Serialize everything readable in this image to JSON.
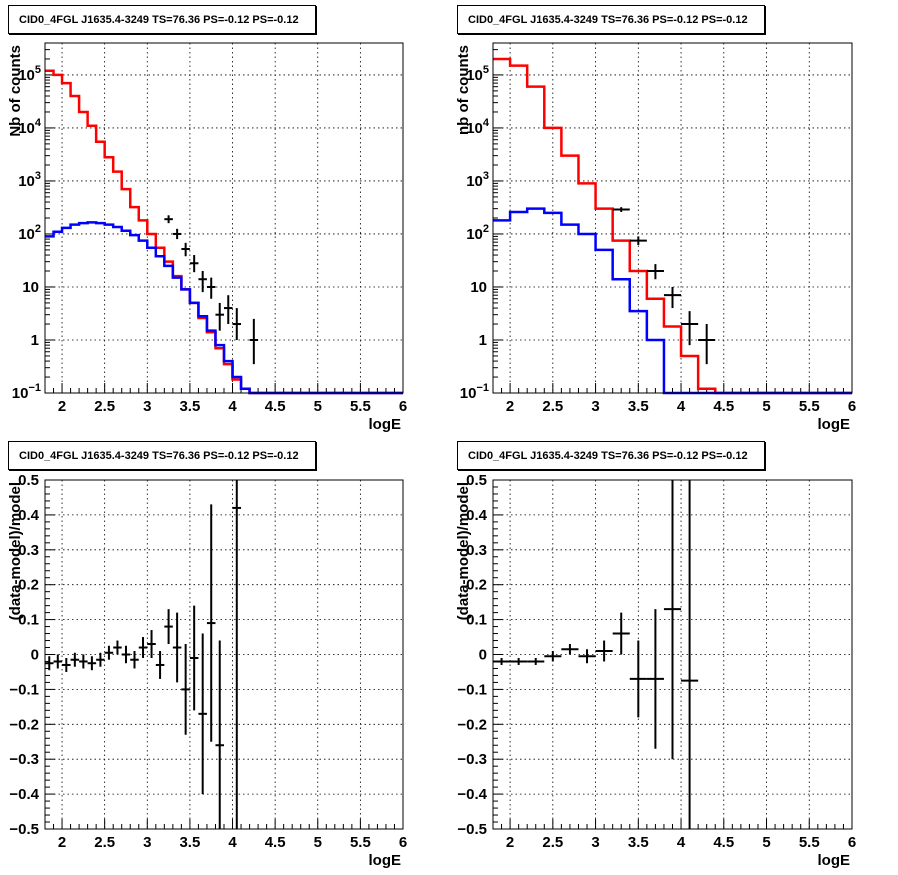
{
  "chart_data": [
    {
      "type": "line",
      "title": "CID0_4FGL J1635.4-3249 TS=76.36 PS=-0.12 PS=-0.12",
      "xlabel": "logE",
      "ylabel": "Nb of counts",
      "xlim": [
        1.8,
        6
      ],
      "ylim": [
        0.1,
        400000
      ],
      "yscale": "log",
      "grid": true,
      "x_ticks": [
        "2",
        "2.5",
        "3",
        "3.5",
        "4",
        "4.5",
        "5",
        "5.5",
        "6"
      ],
      "y_ticks": [
        {
          "v": 0.1,
          "label": "10",
          "exp": "−1"
        },
        {
          "v": 1,
          "label": "1",
          "exp": ""
        },
        {
          "v": 10,
          "label": "10",
          "exp": ""
        },
        {
          "v": 100,
          "label": "10",
          "exp": "2"
        },
        {
          "v": 1000,
          "label": "10",
          "exp": "3"
        },
        {
          "v": 10000,
          "label": "10",
          "exp": "4"
        },
        {
          "v": 100000,
          "label": "10",
          "exp": "5"
        }
      ],
      "bin_edges": [
        1.8,
        1.9,
        2.0,
        2.1,
        2.2,
        2.3,
        2.4,
        2.5,
        2.6,
        2.7,
        2.8,
        2.9,
        3.0,
        3.1,
        3.2,
        3.3,
        3.4,
        3.5,
        3.6,
        3.7,
        3.8,
        3.9,
        4.0,
        4.1,
        4.2,
        4.3,
        4.4,
        4.5,
        4.6,
        4.7,
        4.8,
        4.9,
        5.0,
        5.1,
        5.2,
        5.3,
        5.4,
        5.5,
        5.6,
        5.7,
        5.8,
        5.9,
        6.0
      ],
      "series": [
        {
          "color": "#ff0000",
          "values": [
            120000,
            100000,
            70000,
            40000,
            20000,
            11000,
            5500,
            2800,
            1500,
            700,
            320,
            180,
            100,
            55,
            30,
            16,
            9,
            5,
            2.6,
            1.4,
            0.7,
            0.35,
            0.18,
            0.12,
            0.1,
            0.1,
            0.1,
            0.1,
            0.1,
            0.1,
            0.1,
            0.1,
            0.1,
            0.1,
            0.1,
            0.1,
            0.1,
            0.1,
            0.1,
            0.1,
            0.1,
            0.1
          ]
        },
        {
          "color": "#0000ff",
          "values": [
            90,
            110,
            130,
            150,
            160,
            165,
            160,
            150,
            135,
            115,
            95,
            75,
            55,
            38,
            25,
            15,
            9,
            5,
            2.8,
            1.5,
            0.8,
            0.4,
            0.2,
            0.12,
            0.1,
            0.1,
            0.1,
            0.1,
            0.1,
            0.1,
            0.1,
            0.1,
            0.1,
            0.1,
            0.1,
            0.1,
            0.1,
            0.1,
            0.1,
            0.1,
            0.1,
            0.1
          ]
        }
      ],
      "data_points": [
        {
          "x": 3.25,
          "y": 190,
          "lo": 160,
          "hi": 225
        },
        {
          "x": 3.35,
          "y": 100,
          "lo": 80,
          "hi": 125
        },
        {
          "x": 3.45,
          "y": 52,
          "lo": 38,
          "hi": 68
        },
        {
          "x": 3.55,
          "y": 28,
          "lo": 19,
          "hi": 40
        },
        {
          "x": 3.65,
          "y": 14,
          "lo": 8,
          "hi": 20
        },
        {
          "x": 3.75,
          "y": 10,
          "lo": 6,
          "hi": 15
        },
        {
          "x": 3.85,
          "y": 3,
          "lo": 1.5,
          "hi": 5
        },
        {
          "x": 3.95,
          "y": 4,
          "lo": 2,
          "hi": 7
        },
        {
          "x": 4.05,
          "y": 2,
          "lo": 1,
          "hi": 4
        },
        {
          "x": 4.25,
          "y": 1,
          "lo": 0.35,
          "hi": 2.5
        }
      ]
    },
    {
      "type": "line",
      "title": "CID0_4FGL J1635.4-3249 TS=76.36 PS=-0.12 PS=-0.12",
      "xlabel": "logE",
      "ylabel": "nb of counts",
      "xlim": [
        1.8,
        6
      ],
      "ylim": [
        0.1,
        400000
      ],
      "yscale": "log",
      "grid": true,
      "x_ticks": [
        "2",
        "2.5",
        "3",
        "3.5",
        "4",
        "4.5",
        "5",
        "5.5",
        "6"
      ],
      "y_ticks": [
        {
          "v": 0.1,
          "label": "10",
          "exp": "−1"
        },
        {
          "v": 1,
          "label": "1",
          "exp": ""
        },
        {
          "v": 10,
          "label": "10",
          "exp": ""
        },
        {
          "v": 100,
          "label": "10",
          "exp": "2"
        },
        {
          "v": 1000,
          "label": "10",
          "exp": "3"
        },
        {
          "v": 10000,
          "label": "10",
          "exp": "4"
        },
        {
          "v": 100000,
          "label": "10",
          "exp": "5"
        }
      ],
      "bin_edges": [
        1.8,
        2.0,
        2.2,
        2.4,
        2.6,
        2.8,
        3.0,
        3.2,
        3.4,
        3.6,
        3.8,
        4.0,
        4.2,
        4.4,
        4.6,
        4.8,
        5.0,
        5.2,
        5.4,
        5.6,
        5.8,
        6.0
      ],
      "series": [
        {
          "color": "#ff0000",
          "values": [
            200000,
            150000,
            60000,
            10000,
            3000,
            900,
            300,
            75,
            20,
            6,
            1.8,
            0.5,
            0.12,
            0.1,
            0.1,
            0.1,
            0.1,
            0.1,
            0.1,
            0.1,
            0.1
          ]
        },
        {
          "color": "#0000ff",
          "values": [
            180,
            260,
            300,
            250,
            150,
            100,
            50,
            14,
            3.5,
            1,
            0.1,
            0.1,
            0.1,
            0.1,
            0.1,
            0.1,
            0.1,
            0.1,
            0.1,
            0.1,
            0.1
          ]
        }
      ],
      "data_points": [
        {
          "x": 3.3,
          "y": 290,
          "lo": 260,
          "hi": 320
        },
        {
          "x": 3.5,
          "y": 75,
          "lo": 62,
          "hi": 90
        },
        {
          "x": 3.7,
          "y": 20,
          "lo": 14,
          "hi": 27
        },
        {
          "x": 3.9,
          "y": 7,
          "lo": 4,
          "hi": 10
        },
        {
          "x": 4.1,
          "y": 2,
          "lo": 0.8,
          "hi": 3.5
        },
        {
          "x": 4.3,
          "y": 1,
          "lo": 0.35,
          "hi": 2
        }
      ]
    },
    {
      "type": "scatter",
      "title": "CID0_4FGL J1635.4-3249 TS=76.36 PS=-0.12 PS=-0.12",
      "xlabel": "logE",
      "ylabel": "(data-model)/model",
      "xlim": [
        1.8,
        6
      ],
      "ylim": [
        -0.5,
        0.5
      ],
      "yscale": "linear",
      "grid": true,
      "x_ticks": [
        "2",
        "2.5",
        "3",
        "3.5",
        "4",
        "4.5",
        "5",
        "5.5",
        "6"
      ],
      "y_ticks": [
        {
          "v": -0.5,
          "label": "−0.5"
        },
        {
          "v": -0.4,
          "label": "−0.4"
        },
        {
          "v": -0.3,
          "label": "−0.3"
        },
        {
          "v": -0.2,
          "label": "−0.2"
        },
        {
          "v": -0.1,
          "label": "−0.1"
        },
        {
          "v": 0,
          "label": "0"
        },
        {
          "v": 0.1,
          "label": "0.1"
        },
        {
          "v": 0.2,
          "label": "0.2"
        },
        {
          "v": 0.3,
          "label": "0.3"
        },
        {
          "v": 0.4,
          "label": "0.4"
        },
        {
          "v": 0.5,
          "label": "0.5"
        }
      ],
      "bin_width": 0.1,
      "points": [
        {
          "x": 1.85,
          "y": -0.025,
          "err": 0.02
        },
        {
          "x": 1.95,
          "y": -0.02,
          "err": 0.02
        },
        {
          "x": 2.05,
          "y": -0.03,
          "err": 0.02
        },
        {
          "x": 2.15,
          "y": -0.015,
          "err": 0.02
        },
        {
          "x": 2.25,
          "y": -0.02,
          "err": 0.02
        },
        {
          "x": 2.35,
          "y": -0.025,
          "err": 0.02
        },
        {
          "x": 2.45,
          "y": -0.015,
          "err": 0.02
        },
        {
          "x": 2.55,
          "y": 0.005,
          "err": 0.02
        },
        {
          "x": 2.65,
          "y": 0.02,
          "err": 0.02
        },
        {
          "x": 2.75,
          "y": 0.0,
          "err": 0.025
        },
        {
          "x": 2.85,
          "y": -0.015,
          "err": 0.025
        },
        {
          "x": 2.95,
          "y": 0.02,
          "err": 0.03
        },
        {
          "x": 3.05,
          "y": 0.03,
          "err": 0.04
        },
        {
          "x": 3.15,
          "y": -0.03,
          "err": 0.04
        },
        {
          "x": 3.25,
          "y": 0.08,
          "err": 0.05
        },
        {
          "x": 3.35,
          "y": 0.02,
          "err": 0.1
        },
        {
          "x": 3.45,
          "y": -0.1,
          "err": 0.13
        },
        {
          "x": 3.55,
          "y": -0.01,
          "err": 0.15
        },
        {
          "x": 3.65,
          "y": -0.17,
          "err": 0.23
        },
        {
          "x": 3.75,
          "y": 0.09,
          "err": 0.34
        },
        {
          "x": 3.85,
          "y": -0.26,
          "err": 0.3
        },
        {
          "x": 4.05,
          "y": 0.42,
          "err": 1.0
        }
      ]
    },
    {
      "type": "scatter",
      "title": "CID0_4FGL J1635.4-3249 TS=76.36 PS=-0.12 PS=-0.12",
      "xlabel": "logE",
      "ylabel": "(data-model)/model",
      "xlim": [
        1.8,
        6
      ],
      "ylim": [
        -0.5,
        0.5
      ],
      "yscale": "linear",
      "grid": true,
      "x_ticks": [
        "2",
        "2.5",
        "3",
        "3.5",
        "4",
        "4.5",
        "5",
        "5.5",
        "6"
      ],
      "y_ticks": [
        {
          "v": -0.5,
          "label": "−0.5"
        },
        {
          "v": -0.4,
          "label": "−0.4"
        },
        {
          "v": -0.3,
          "label": "−0.3"
        },
        {
          "v": -0.2,
          "label": "−0.2"
        },
        {
          "v": -0.1,
          "label": "−0.1"
        },
        {
          "v": 0,
          "label": "0"
        },
        {
          "v": 0.1,
          "label": "0.1"
        },
        {
          "v": 0.2,
          "label": "0.2"
        },
        {
          "v": 0.3,
          "label": "0.3"
        },
        {
          "v": 0.4,
          "label": "0.4"
        },
        {
          "v": 0.5,
          "label": "0.5"
        }
      ],
      "bin_width": 0.2,
      "points": [
        {
          "x": 1.9,
          "y": -0.02,
          "err": 0.01
        },
        {
          "x": 2.1,
          "y": -0.02,
          "err": 0.01
        },
        {
          "x": 2.3,
          "y": -0.02,
          "err": 0.01
        },
        {
          "x": 2.5,
          "y": -0.005,
          "err": 0.015
        },
        {
          "x": 2.7,
          "y": 0.015,
          "err": 0.015
        },
        {
          "x": 2.9,
          "y": -0.005,
          "err": 0.02
        },
        {
          "x": 3.1,
          "y": 0.01,
          "err": 0.03
        },
        {
          "x": 3.3,
          "y": 0.06,
          "err": 0.06
        },
        {
          "x": 3.5,
          "y": -0.07,
          "err": 0.11
        },
        {
          "x": 3.7,
          "y": -0.07,
          "err": 0.2
        },
        {
          "x": 3.9,
          "y": 0.13,
          "err": 0.43
        },
        {
          "x": 4.1,
          "y": -0.075,
          "err": 1.0
        }
      ]
    }
  ]
}
